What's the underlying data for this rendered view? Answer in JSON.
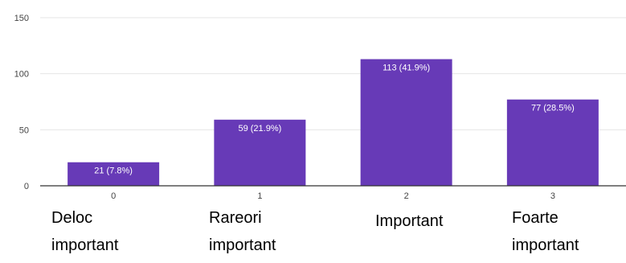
{
  "chart_data": {
    "type": "bar",
    "x_ticks": [
      "0",
      "1",
      "2",
      "3"
    ],
    "category_labels": [
      [
        "Deloc",
        "important"
      ],
      [
        "Rareori",
        "important"
      ],
      [
        "Important"
      ],
      [
        "Foarte",
        "important"
      ]
    ],
    "values": [
      21,
      59,
      113,
      77
    ],
    "data_labels": [
      "21 (7.8%)",
      "59 (21.9%)",
      "113 (41.9%)",
      "77 (28.5%)"
    ],
    "ylim": [
      0,
      150
    ],
    "yticks": [
      0,
      50,
      100,
      150
    ],
    "grid": true,
    "colors": {
      "bar": "#673ab7",
      "grid": "#e6e6e6",
      "axis": "#333333"
    }
  }
}
